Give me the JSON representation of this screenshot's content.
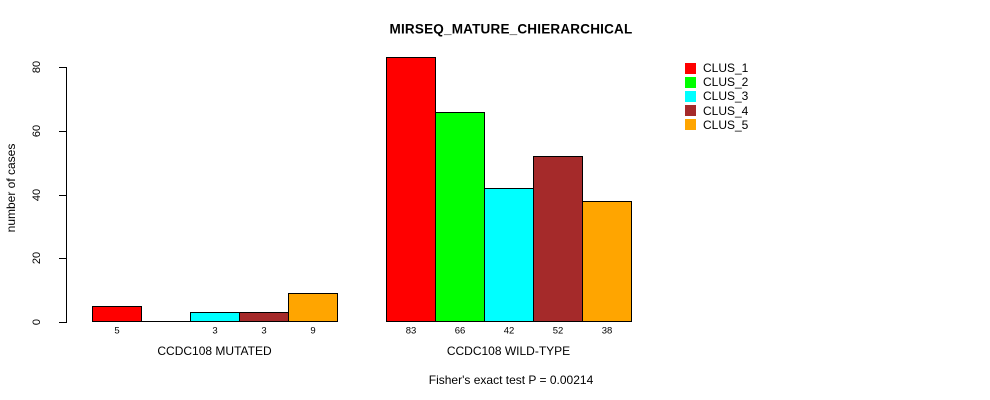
{
  "title": "MIRSEQ_MATURE_CHIERARCHICAL",
  "chart_data": {
    "type": "bar",
    "title": "MIRSEQ_MATURE_CHIERARCHICAL",
    "xlabel": "",
    "ylabel": "number of cases",
    "ylim": [
      0,
      85
    ],
    "yticks": [
      "0",
      "20",
      "40",
      "60",
      "80"
    ],
    "ytick_values": [
      0,
      20,
      40,
      60,
      80
    ],
    "grid": false,
    "legend_position": "top-right",
    "categories": [
      "CCDC108 MUTATED",
      "CCDC108 WILD-TYPE"
    ],
    "series": [
      {
        "name": "CLUS_1",
        "color": "#FF0000",
        "values": [
          5,
          83
        ]
      },
      {
        "name": "CLUS_2",
        "color": "#00FF00",
        "values": [
          0,
          66
        ]
      },
      {
        "name": "CLUS_3",
        "color": "#00FFFF",
        "values": [
          3,
          42
        ]
      },
      {
        "name": "CLUS_4",
        "color": "#A52A2A",
        "values": [
          3,
          52
        ]
      },
      {
        "name": "CLUS_5",
        "color": "#FFA500",
        "values": [
          9,
          38
        ]
      }
    ],
    "bar_value_labels": [
      [
        "5",
        "",
        "3",
        "3",
        "9"
      ],
      [
        "83",
        "66",
        "42",
        "52",
        "38"
      ]
    ],
    "annotation": "Fisher's exact test P = 0.00214"
  }
}
